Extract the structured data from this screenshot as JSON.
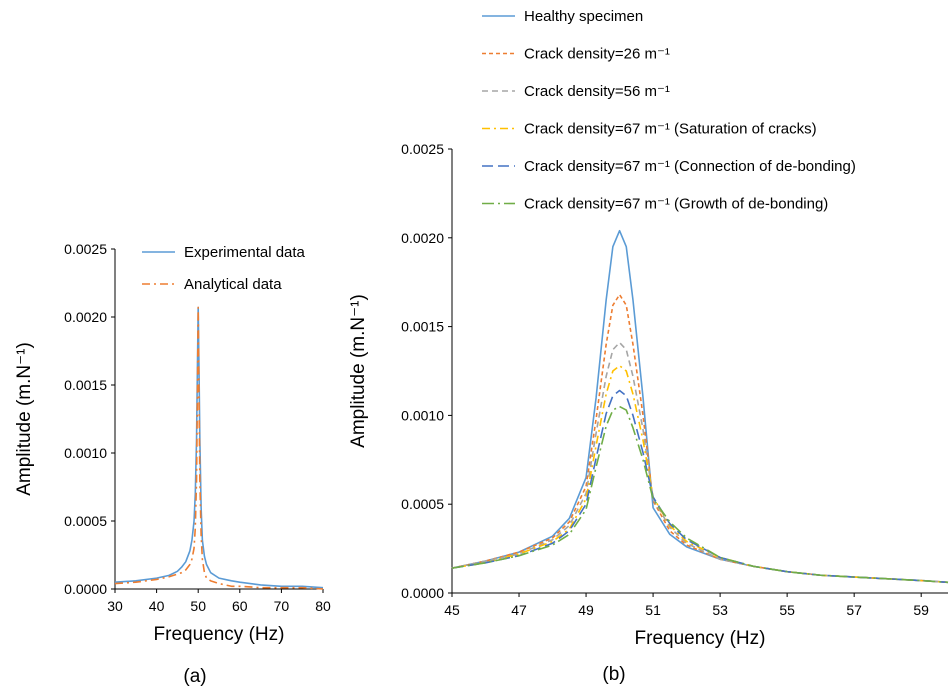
{
  "chart_data": [
    {
      "type": "line",
      "caption": "(a)",
      "xlabel": "Frequency (Hz)",
      "ylabel": "Amplitude (m.N⁻¹)",
      "xlim": [
        30,
        80
      ],
      "ylim": [
        0,
        0.0025
      ],
      "x_ticks": [
        "30",
        "40",
        "50",
        "60",
        "70",
        "80"
      ],
      "y_ticks": [
        "0.0000",
        "0.0005",
        "0.0010",
        "0.0015",
        "0.0020",
        "0.0025"
      ],
      "legend_position": "top-right",
      "grid": false,
      "series": [
        {
          "name": "Experimental data",
          "color": "#5B9BD5",
          "style": "solid",
          "x": [
            30,
            35,
            40,
            43,
            45,
            46,
            47,
            48,
            48.5,
            49,
            49.3,
            49.6,
            49.8,
            50,
            50.2,
            50.4,
            50.7,
            51,
            51.5,
            52,
            53,
            55,
            58,
            60,
            65,
            70,
            75,
            80
          ],
          "y": [
            5e-05,
            6e-05,
            8e-05,
            0.0001,
            0.00013,
            0.00016,
            0.0002,
            0.00028,
            0.00036,
            0.0005,
            0.0007,
            0.0011,
            0.0016,
            0.00207,
            0.0016,
            0.0011,
            0.0006,
            0.00036,
            0.00024,
            0.00018,
            0.00012,
            8e-05,
            6e-05,
            5e-05,
            3e-05,
            2e-05,
            2e-05,
            1e-05
          ]
        },
        {
          "name": "Analytical data",
          "color": "#ED7D31",
          "style": "dashdot",
          "x": [
            30,
            35,
            40,
            43,
            45,
            46,
            47,
            48,
            48.5,
            49,
            49.3,
            49.6,
            49.8,
            50,
            50.2,
            50.4,
            50.7,
            51,
            51.5,
            52,
            53,
            55,
            58,
            60,
            65,
            70,
            75,
            80
          ],
          "y": [
            4e-05,
            5e-05,
            7e-05,
            9e-05,
            0.00011,
            0.00012,
            0.00014,
            0.00018,
            0.00022,
            0.0003,
            0.00045,
            0.0008,
            0.0014,
            0.00207,
            0.0014,
            0.0008,
            0.0004,
            0.00022,
            0.00012,
            8e-05,
            6e-05,
            4e-05,
            2e-05,
            2e-05,
            1e-05,
            1e-05,
            1e-05,
            0.0
          ]
        }
      ]
    },
    {
      "type": "line",
      "caption": "(b)",
      "xlabel": "Frequency (Hz)",
      "ylabel": "Amplitude (m.N⁻¹)",
      "xlim": [
        45,
        59.8
      ],
      "ylim": [
        0,
        0.0025
      ],
      "x_ticks": [
        "45",
        "47",
        "49",
        "51",
        "53",
        "55",
        "57",
        "59"
      ],
      "y_ticks": [
        "0.0000",
        "0.0005",
        "0.0010",
        "0.0015",
        "0.0020",
        "0.0025"
      ],
      "legend_position": "top",
      "grid": false,
      "series": [
        {
          "name": "Healthy specimen",
          "color": "#5B9BD5",
          "style": "solid",
          "x": [
            45,
            46,
            47,
            48,
            48.5,
            49,
            49.3,
            49.6,
            49.8,
            50,
            50.2,
            50.4,
            50.7,
            51,
            51.5,
            52,
            53,
            54,
            55,
            56,
            57,
            58,
            59,
            59.8
          ],
          "y": [
            0.00014,
            0.00018,
            0.00023,
            0.00032,
            0.00042,
            0.00065,
            0.0011,
            0.00165,
            0.00195,
            0.00204,
            0.00195,
            0.00165,
            0.0011,
            0.00048,
            0.00033,
            0.00026,
            0.00019,
            0.00015,
            0.00012,
            0.0001,
            9e-05,
            8e-05,
            7e-05,
            6e-05
          ]
        },
        {
          "name": "Crack density=26 m⁻¹",
          "color": "#ED7D31",
          "style": "dash-short",
          "x": [
            45,
            46,
            47,
            48,
            48.5,
            49,
            49.3,
            49.6,
            49.8,
            50,
            50.2,
            50.4,
            50.7,
            51,
            51.5,
            52,
            53,
            54,
            55,
            56,
            57,
            58,
            59,
            59.8
          ],
          "y": [
            0.00014,
            0.00018,
            0.00023,
            0.00031,
            0.0004,
            0.0006,
            0.00098,
            0.0014,
            0.00162,
            0.00168,
            0.00162,
            0.0014,
            0.001,
            0.00052,
            0.00035,
            0.00027,
            0.00019,
            0.00015,
            0.00012,
            0.0001,
            9e-05,
            8e-05,
            7e-05,
            6e-05
          ]
        },
        {
          "name": "Crack density=56 m⁻¹",
          "color": "#A5A5A5",
          "style": "dash",
          "x": [
            45,
            46,
            47,
            48,
            48.5,
            49,
            49.3,
            49.6,
            49.8,
            50,
            50.2,
            50.4,
            50.7,
            51,
            51.5,
            52,
            53,
            54,
            55,
            56,
            57,
            58,
            59,
            59.8
          ],
          "y": [
            0.00014,
            0.00018,
            0.00022,
            0.0003,
            0.00038,
            0.00056,
            0.0009,
            0.00122,
            0.00137,
            0.00141,
            0.00137,
            0.00122,
            0.00092,
            0.00053,
            0.00037,
            0.00028,
            0.00019,
            0.00015,
            0.00012,
            0.0001,
            9e-05,
            8e-05,
            7e-05,
            6e-05
          ]
        },
        {
          "name": "Crack density=67 m⁻¹ (Saturation of cracks)",
          "color": "#FFC000",
          "style": "dashdot",
          "x": [
            45,
            46,
            47,
            48,
            48.5,
            49,
            49.3,
            49.6,
            49.8,
            50,
            50.2,
            50.4,
            50.7,
            51,
            51.5,
            52,
            53,
            54,
            55,
            56,
            57,
            58,
            59,
            59.8
          ],
          "y": [
            0.00014,
            0.00017,
            0.00022,
            0.00029,
            0.00036,
            0.00053,
            0.00083,
            0.00112,
            0.00125,
            0.00128,
            0.00125,
            0.00112,
            0.00086,
            0.00054,
            0.00038,
            0.00029,
            0.0002,
            0.00015,
            0.00012,
            0.0001,
            9e-05,
            8e-05,
            7e-05,
            6e-05
          ]
        },
        {
          "name": "Crack density=67 m⁻¹ (Connection of de-bonding)",
          "color": "#4472C4",
          "style": "dash-long",
          "x": [
            45,
            46,
            47,
            48,
            48.5,
            49,
            49.3,
            49.6,
            49.8,
            50,
            50.2,
            50.4,
            50.7,
            51,
            51.5,
            52,
            53,
            54,
            55,
            56,
            57,
            58,
            59,
            59.8
          ],
          "y": [
            0.00014,
            0.00017,
            0.00021,
            0.00028,
            0.00035,
            0.0005,
            0.00076,
            0.00101,
            0.00111,
            0.00114,
            0.00111,
            0.001,
            0.00079,
            0.00054,
            0.00039,
            0.0003,
            0.0002,
            0.00015,
            0.00012,
            0.0001,
            9e-05,
            8e-05,
            7e-05,
            6e-05
          ]
        },
        {
          "name": "Crack density=67 m⁻¹ (Growth of de-bonding)",
          "color": "#70AD47",
          "style": "dashdot-long",
          "x": [
            45,
            46,
            47,
            48,
            48.5,
            49,
            49.3,
            49.6,
            49.8,
            50,
            50.2,
            50.4,
            50.7,
            51,
            51.5,
            52,
            53,
            54,
            55,
            56,
            57,
            58,
            59,
            59.8
          ],
          "y": [
            0.00014,
            0.00017,
            0.00021,
            0.00027,
            0.00033,
            0.00047,
            0.00071,
            0.00094,
            0.00103,
            0.00105,
            0.00103,
            0.00093,
            0.00075,
            0.00053,
            0.0004,
            0.00031,
            0.0002,
            0.00015,
            0.00012,
            0.0001,
            9e-05,
            8e-05,
            7e-05,
            6e-05
          ]
        }
      ]
    }
  ]
}
